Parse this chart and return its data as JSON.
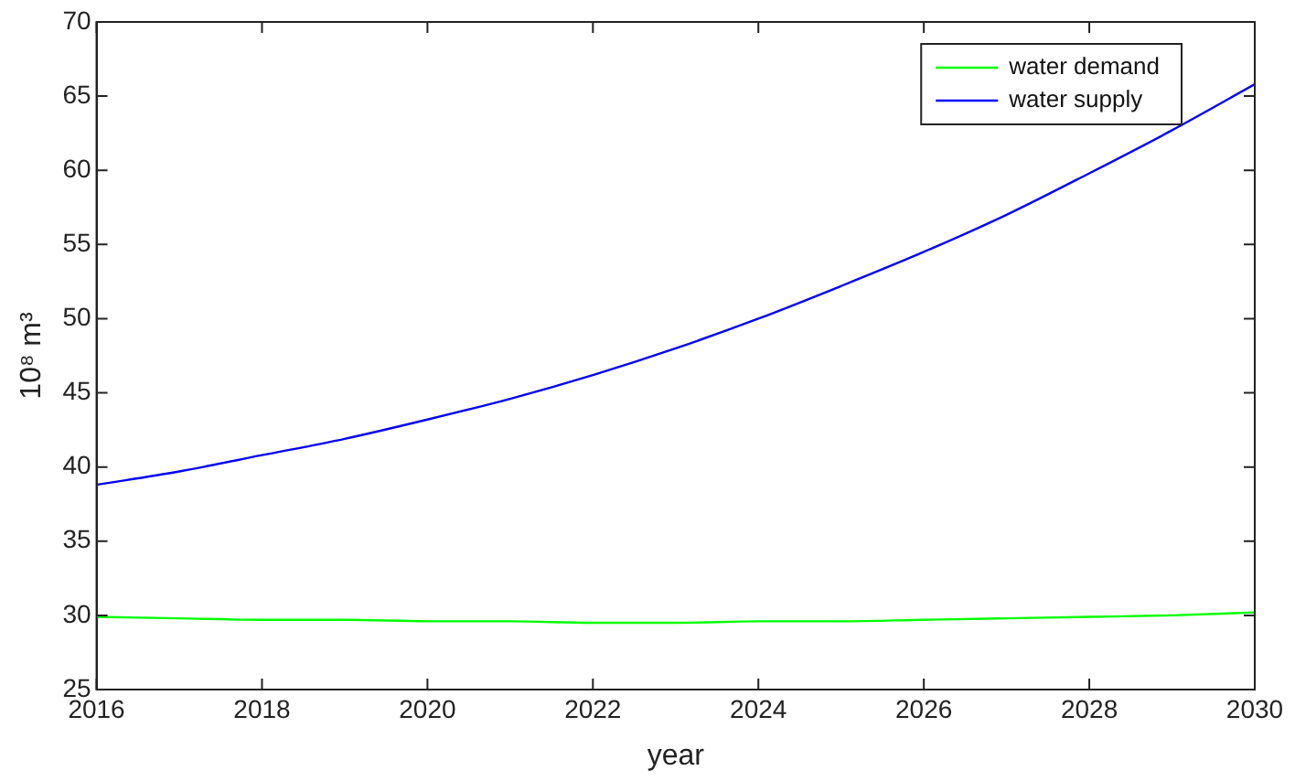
{
  "chart_data": {
    "type": "line",
    "xlabel": "year",
    "ylabel": "10⁸ m³",
    "x": [
      2016,
      2017,
      2018,
      2019,
      2020,
      2021,
      2022,
      2023,
      2024,
      2025,
      2026,
      2027,
      2028,
      2029,
      2030
    ],
    "series": [
      {
        "name": "water demand",
        "color": "#00ff00",
        "values": [
          29.9,
          29.8,
          29.7,
          29.7,
          29.6,
          29.6,
          29.5,
          29.5,
          29.6,
          29.6,
          29.7,
          29.8,
          29.9,
          30.0,
          30.2
        ]
      },
      {
        "name": "water supply",
        "color": "#0000ff",
        "values": [
          38.8,
          39.7,
          40.8,
          41.9,
          43.2,
          44.6,
          46.2,
          48.0,
          50.0,
          52.2,
          54.5,
          57.0,
          59.8,
          62.7,
          65.8
        ]
      }
    ],
    "xlim": [
      2016,
      2030
    ],
    "xticks": [
      2016,
      2018,
      2020,
      2022,
      2024,
      2026,
      2028,
      2030
    ],
    "ylim": [
      25,
      70
    ],
    "yticks": [
      25,
      30,
      35,
      40,
      45,
      50,
      55,
      60,
      65,
      70
    ],
    "grid": false,
    "legend": "top right",
    "marker": "none",
    "line_style": "solid"
  }
}
